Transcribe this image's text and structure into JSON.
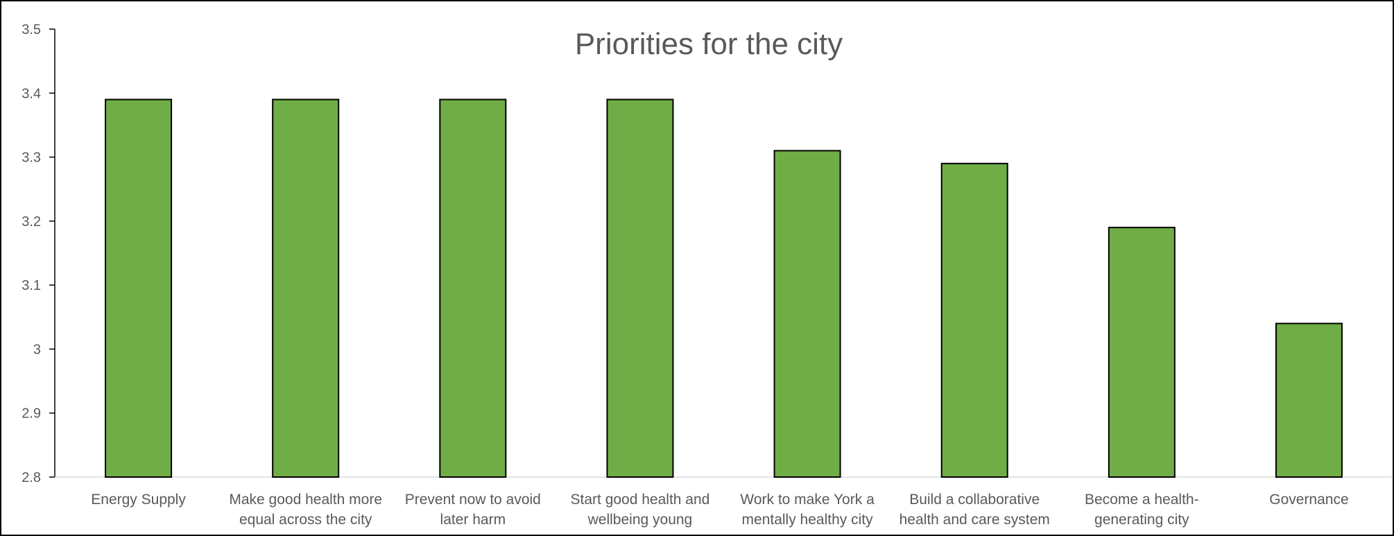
{
  "chart_data": {
    "type": "bar",
    "title": "Priorities for the city",
    "xlabel": "",
    "ylabel": "",
    "categories": [
      [
        "Energy Supply"
      ],
      [
        "Make good health more",
        "equal across the city"
      ],
      [
        "Prevent now to avoid",
        "later harm"
      ],
      [
        "Start good health and",
        "wellbeing young"
      ],
      [
        "Work to make York a",
        "mentally healthy city"
      ],
      [
        "Build a collaborative",
        "health and care system"
      ],
      [
        "Become a health-",
        "generating city"
      ],
      [
        "Governance"
      ]
    ],
    "values": [
      3.39,
      3.39,
      3.39,
      3.39,
      3.31,
      3.29,
      3.19,
      3.04
    ],
    "ylim": [
      2.8,
      3.5
    ],
    "yticks": [
      "2.8",
      "2.9",
      "3",
      "3.1",
      "3.2",
      "3.3",
      "3.4",
      "3.5"
    ],
    "grid": false,
    "legend": "none",
    "colors": {
      "bar_fill": "#70AD47",
      "bar_stroke": "#000000",
      "axis": "#000000",
      "text": "#595959"
    }
  }
}
